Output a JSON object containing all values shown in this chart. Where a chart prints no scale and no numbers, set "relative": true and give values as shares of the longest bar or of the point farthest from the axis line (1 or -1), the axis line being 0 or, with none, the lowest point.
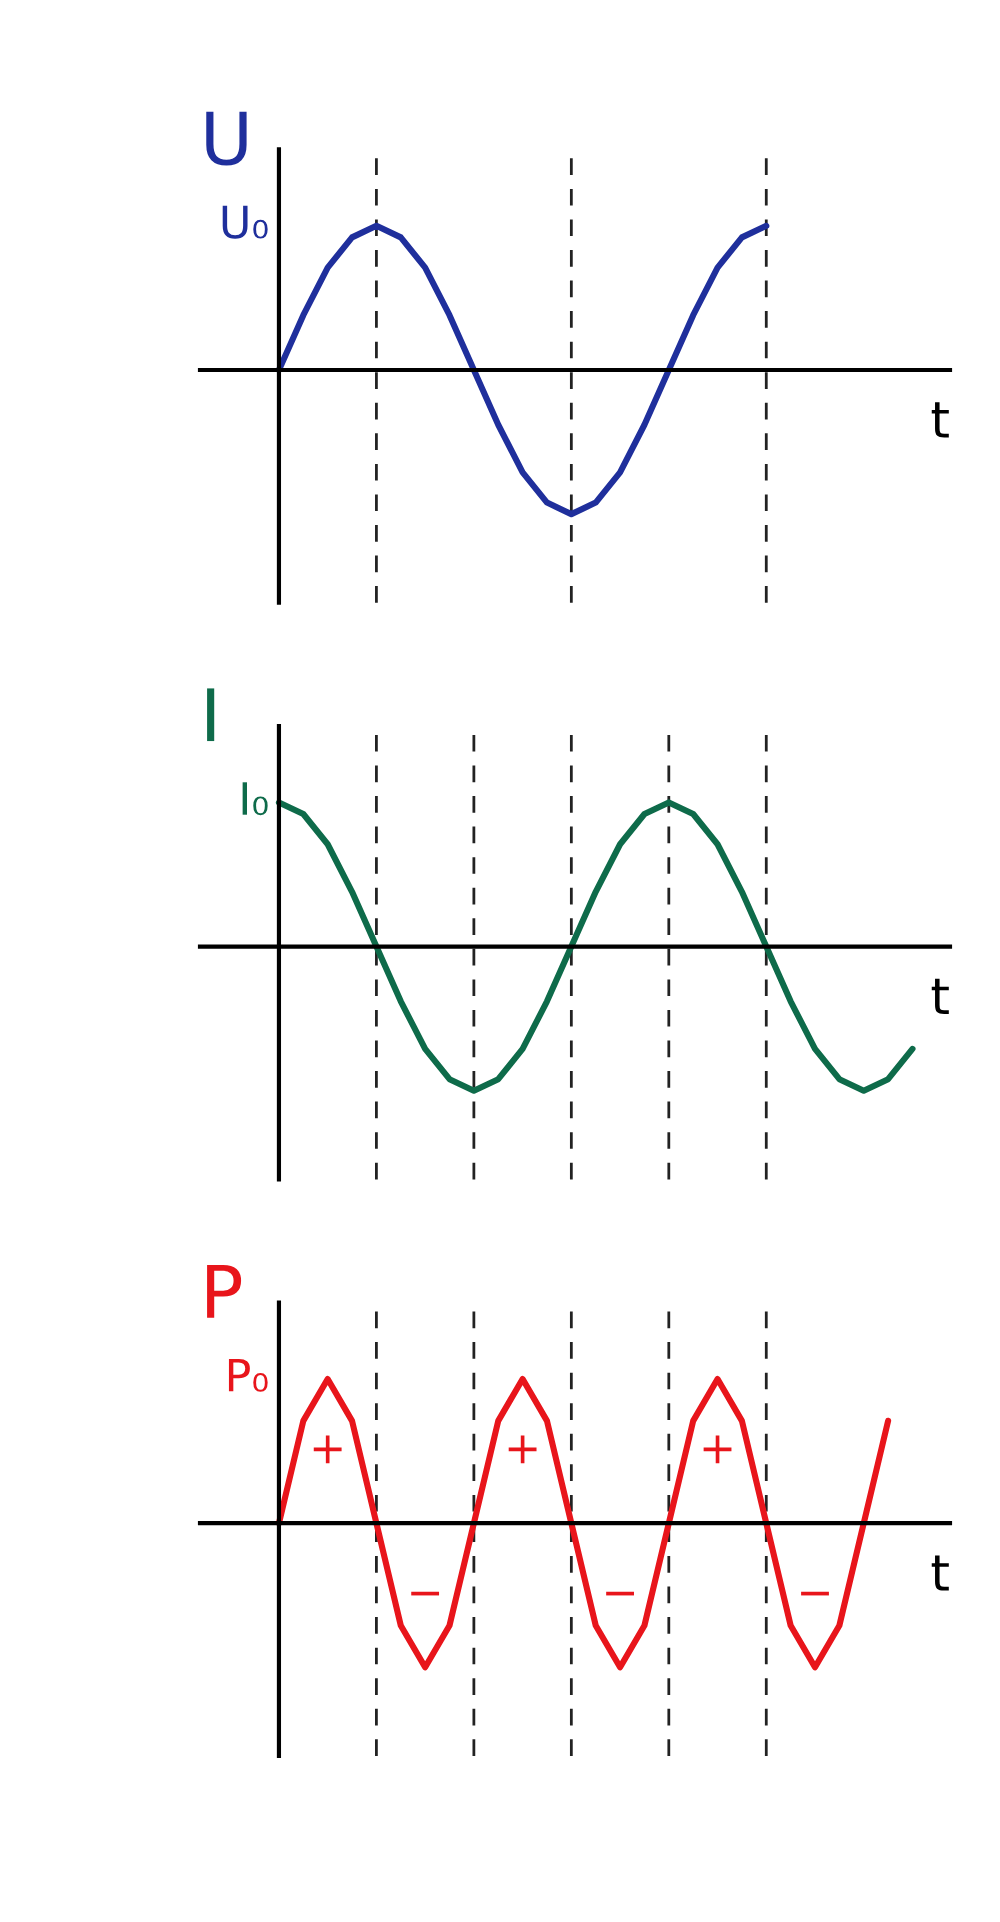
{
  "chart_data": [
    {
      "type": "line",
      "relative": true,
      "ylabel": "U",
      "xlabel": "t",
      "grid": "x",
      "color": "#1f2f9c",
      "line_style": "solid",
      "marker": "none",
      "categories": [
        null,
        null,
        null,
        null,
        null,
        null,
        null,
        null,
        null,
        null,
        null,
        null,
        null,
        null,
        null,
        null,
        null,
        null,
        null,
        null,
        null
      ],
      "values": [
        0,
        0.38,
        0.71,
        0.92,
        1,
        0.92,
        0.71,
        0.38,
        0,
        -0.38,
        -0.71,
        -0.92,
        -1,
        -0.92,
        -0.71,
        -0.38,
        0,
        0.38,
        0.71,
        0.92,
        1
      ],
      "annotations": [
        "U₀"
      ]
    },
    {
      "type": "line",
      "relative": true,
      "ylabel": "I",
      "xlabel": "t",
      "grid": "x",
      "color": "#0e6b4a",
      "line_style": "solid",
      "marker": "none",
      "categories": [
        null,
        null,
        null,
        null,
        null,
        null,
        null,
        null,
        null,
        null,
        null,
        null,
        null,
        null,
        null,
        null,
        null,
        null,
        null,
        null,
        null,
        null,
        null,
        null,
        null,
        null,
        null
      ],
      "values": [
        1,
        0.92,
        0.71,
        0.38,
        0,
        -0.38,
        -0.71,
        -0.92,
        -1,
        -0.92,
        -0.71,
        -0.38,
        0,
        0.38,
        0.71,
        0.92,
        1,
        0.92,
        0.71,
        0.38,
        0,
        -0.38,
        -0.71,
        -0.92,
        -1,
        -0.92,
        -0.71
      ],
      "annotations": [
        "I₀"
      ]
    },
    {
      "type": "line",
      "relative": true,
      "ylabel": "P",
      "xlabel": "t",
      "grid": "x",
      "color": "#e8151b",
      "line_style": "solid",
      "marker": "none",
      "categories": [
        null,
        null,
        null,
        null,
        null,
        null,
        null,
        null,
        null,
        null,
        null,
        null,
        null,
        null,
        null,
        null,
        null,
        null,
        null,
        null,
        null,
        null,
        null,
        null,
        null,
        null
      ],
      "values": [
        0,
        0.71,
        1,
        0.71,
        0,
        -0.71,
        -1,
        -0.71,
        0,
        0.71,
        1,
        0.71,
        0,
        -0.71,
        -1,
        -0.71,
        0,
        0.71,
        1,
        0.71,
        0,
        -0.71,
        -1,
        -0.71,
        0,
        0.71
      ],
      "annotations": [
        "P₀",
        "+",
        "−",
        "+",
        "−",
        "+",
        "−"
      ]
    }
  ]
}
